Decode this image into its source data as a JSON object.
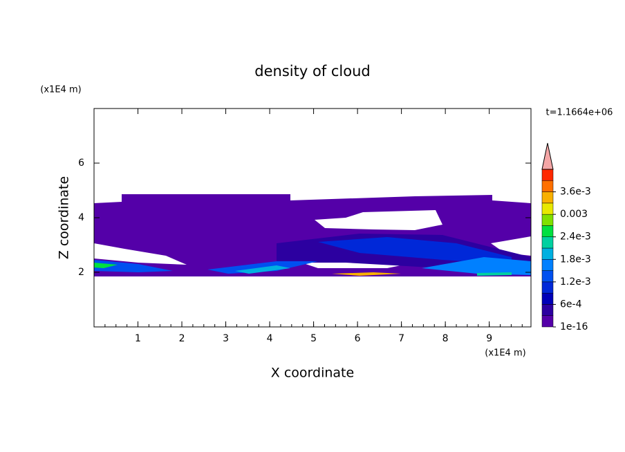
{
  "chart_data": {
    "type": "contour",
    "title": "density of cloud",
    "x_label": "X coordinate",
    "y_label": "Z coordinate",
    "x_unit": "(x1E4 m)",
    "y_unit": "(x1E4 m)",
    "time_label": "t=1.1664e+06",
    "xlim": [
      0,
      9.95
    ],
    "ylim": [
      0,
      8
    ],
    "xticks": [
      1,
      2,
      3,
      4,
      5,
      6,
      7,
      8,
      9
    ],
    "yticks": [
      2,
      4,
      6
    ],
    "colorbar": {
      "lim": [
        0,
        0.0042
      ],
      "colors": [
        "#5400a8",
        "#2c00a0",
        "#0000b8",
        "#0028d8",
        "#0050f0",
        "#0080ff",
        "#00b0e0",
        "#00d0a0",
        "#00e040",
        "#80e000",
        "#e8e800",
        "#f8b000",
        "#ff7000",
        "#ff2800"
      ],
      "extend_color": "#f4a6a6",
      "ticks": [
        {
          "value": 1e-16,
          "label": "1e-16"
        },
        {
          "value": 0.0006,
          "label": "6e-4"
        },
        {
          "value": 0.0012,
          "label": "1.2e-3"
        },
        {
          "value": 0.0018,
          "label": "1.8e-3"
        },
        {
          "value": 0.0024,
          "label": "2.4e-3"
        },
        0.003,
        {
          "value": 0.0036,
          "label": "3.6e-3"
        }
      ]
    }
  }
}
